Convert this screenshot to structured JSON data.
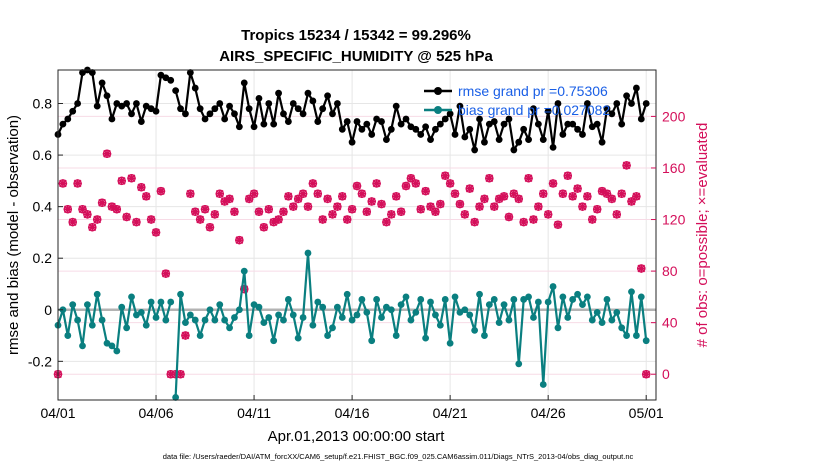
{
  "chart_data": {
    "type": "line",
    "title": "Tropics 15234 / 15342 = 99.296%",
    "subtitle": "AIRS_SPECIFIC_HUMIDITY @ 525 hPa",
    "xlabel": "Apr.01,2013 00:00:00 start",
    "ylabel": "rmse and bias (model - observation)",
    "ylabel_right": "# of obs: o=possible; ×=evaluated",
    "footer": "data file: /Users/raeder/DAI/ATM_forcXX/CAM6_setup/f.e21.FHIST_BGC.f09_025.CAM6assim.011/Diags_NTrS_2013-04/obs_diag_output.nc",
    "xlim": [
      0,
      30.5
    ],
    "ylim": [
      -0.35,
      0.93
    ],
    "ylim_right": [
      -20,
      236
    ],
    "x_ticks": [
      0,
      5,
      10,
      15,
      20,
      25,
      30
    ],
    "x_tick_labels": [
      "04/01",
      "04/06",
      "04/11",
      "04/16",
      "04/21",
      "04/26",
      "05/01"
    ],
    "y_ticks": [
      -0.2,
      0,
      0.2,
      0.4,
      0.6,
      0.8
    ],
    "y_tick_labels": [
      "-0.2",
      "0",
      "0.2",
      "0.4",
      "0.6",
      "0.8"
    ],
    "y_ticks_right": [
      0,
      40,
      80,
      120,
      160,
      200
    ],
    "y_tick_labels_right": [
      "0",
      "40",
      "80",
      "120",
      "160",
      "200"
    ],
    "zero_line": 0,
    "grid": true,
    "series": [
      {
        "name": "rmse grand pr",
        "legend": "rmse grand pr =0.75306",
        "color": "#000000",
        "x": [
          0.0,
          0.25,
          0.5,
          0.75,
          1.0,
          1.25,
          1.5,
          1.75,
          2.0,
          2.25,
          2.5,
          2.75,
          3.0,
          3.25,
          3.5,
          3.75,
          4.0,
          4.25,
          4.5,
          4.75,
          5.0,
          5.25,
          5.5,
          5.75,
          null,
          6.0,
          6.25,
          6.5,
          6.75,
          7.0,
          7.25,
          7.5,
          7.75,
          8.0,
          8.25,
          8.5,
          8.75,
          9.0,
          9.25,
          9.5,
          9.75,
          10.0,
          10.25,
          10.5,
          10.75,
          11.0,
          11.25,
          11.5,
          11.75,
          12.0,
          12.25,
          12.5,
          12.75,
          13.0,
          13.25,
          13.5,
          13.75,
          14.0,
          14.25,
          14.5,
          14.75,
          15.0,
          15.25,
          15.5,
          15.75,
          16.0,
          16.25,
          16.5,
          16.75,
          17.0,
          17.25,
          17.5,
          17.75,
          18.0,
          18.25,
          18.5,
          18.75,
          19.0,
          19.25,
          19.5,
          19.75,
          20.0,
          20.25,
          20.5,
          20.75,
          21.0,
          21.25,
          21.5,
          21.75,
          22.0,
          22.25,
          22.5,
          22.75,
          23.0,
          23.25,
          23.5,
          23.75,
          24.0,
          24.25,
          24.5,
          24.75,
          25.0,
          25.25,
          25.5,
          25.75,
          26.0,
          26.25,
          26.5,
          26.75,
          27.0,
          27.25,
          27.5,
          27.75,
          28.0,
          28.25,
          28.5,
          28.75,
          29.0,
          29.25,
          29.5,
          29.75,
          30.0
        ],
        "values": [
          0.68,
          0.72,
          0.74,
          0.77,
          0.8,
          0.92,
          0.93,
          0.92,
          0.79,
          0.88,
          0.83,
          0.74,
          0.8,
          0.79,
          0.8,
          0.76,
          0.8,
          0.73,
          0.79,
          0.78,
          0.77,
          0.91,
          0.9,
          0.89,
          null,
          0.85,
          0.78,
          0.76,
          0.92,
          0.86,
          0.78,
          0.74,
          0.76,
          0.78,
          0.8,
          0.74,
          0.79,
          0.76,
          0.71,
          0.88,
          0.78,
          0.71,
          0.82,
          0.72,
          0.8,
          0.72,
          0.84,
          0.76,
          0.73,
          0.8,
          0.78,
          0.76,
          0.84,
          0.81,
          0.73,
          0.78,
          0.83,
          0.76,
          0.8,
          0.7,
          0.73,
          0.65,
          0.73,
          0.7,
          0.72,
          0.68,
          0.74,
          0.73,
          0.66,
          0.7,
          0.79,
          0.72,
          0.74,
          0.71,
          0.7,
          0.68,
          0.71,
          0.66,
          0.7,
          0.72,
          0.74,
          0.76,
          0.68,
          0.79,
          0.67,
          0.7,
          0.62,
          0.74,
          0.65,
          0.72,
          0.73,
          0.66,
          0.72,
          0.74,
          0.62,
          0.65,
          0.7,
          0.66,
          0.78,
          0.72,
          0.66,
          0.77,
          0.63,
          0.8,
          0.68,
          0.72,
          0.72,
          0.7,
          0.68,
          0.8,
          0.71,
          0.72,
          0.65,
          0.78,
          0.76,
          0.8,
          0.72,
          0.83,
          0.8,
          0.86,
          0.74,
          0.8
        ]
      },
      {
        "name": "bias grand pr",
        "legend": "bias grand pr =0.027082",
        "color": "#0a7f80",
        "x": [
          0.0,
          0.25,
          0.5,
          0.75,
          1.0,
          1.25,
          1.5,
          1.75,
          2.0,
          2.25,
          2.5,
          2.75,
          3.0,
          3.25,
          3.5,
          3.75,
          4.0,
          4.25,
          4.5,
          4.75,
          5.0,
          5.25,
          5.5,
          5.75,
          null,
          6.0,
          6.25,
          6.5,
          6.75,
          7.0,
          7.25,
          7.5,
          7.75,
          8.0,
          8.25,
          8.5,
          8.75,
          9.0,
          9.25,
          9.5,
          9.75,
          10.0,
          10.25,
          10.5,
          10.75,
          11.0,
          11.25,
          11.5,
          11.75,
          12.0,
          12.25,
          12.5,
          12.75,
          13.0,
          13.25,
          13.5,
          13.75,
          14.0,
          14.25,
          14.5,
          14.75,
          15.0,
          15.25,
          15.5,
          15.75,
          16.0,
          16.25,
          16.5,
          16.75,
          17.0,
          17.25,
          17.5,
          17.75,
          18.0,
          18.25,
          18.5,
          18.75,
          19.0,
          19.25,
          19.5,
          19.75,
          20.0,
          20.25,
          20.5,
          20.75,
          21.0,
          21.25,
          21.5,
          21.75,
          22.0,
          22.25,
          22.5,
          22.75,
          23.0,
          23.25,
          23.5,
          23.75,
          24.0,
          24.25,
          24.5,
          24.75,
          25.0,
          25.25,
          25.5,
          25.75,
          26.0,
          26.25,
          26.5,
          26.75,
          27.0,
          27.25,
          27.5,
          27.75,
          28.0,
          28.25,
          28.5,
          28.75,
          29.0,
          29.25,
          29.5,
          29.75,
          30.0
        ],
        "values": [
          -0.06,
          0.0,
          -0.1,
          0.02,
          -0.04,
          -0.14,
          0.02,
          -0.06,
          0.06,
          -0.04,
          -0.13,
          -0.14,
          -0.16,
          0.01,
          -0.07,
          0.05,
          -0.02,
          -0.01,
          -0.06,
          0.03,
          -0.03,
          0.03,
          -0.04,
          0.03,
          null,
          -0.34,
          0.06,
          -0.05,
          -0.02,
          -0.04,
          -0.1,
          -0.04,
          0.0,
          -0.04,
          0.02,
          -0.04,
          -0.07,
          -0.03,
          0.0,
          0.15,
          -0.1,
          0.02,
          0.01,
          -0.05,
          -0.03,
          -0.12,
          -0.02,
          -0.04,
          0.04,
          -0.02,
          -0.11,
          -0.03,
          0.22,
          -0.06,
          0.03,
          0.01,
          -0.1,
          -0.07,
          0.01,
          -0.03,
          0.06,
          -0.04,
          -0.02,
          0.04,
          -0.01,
          -0.12,
          0.04,
          -0.03,
          0.01,
          0.0,
          -0.1,
          0.02,
          0.05,
          -0.04,
          -0.01,
          0.04,
          -0.11,
          0.03,
          -0.02,
          -0.06,
          0.04,
          -0.13,
          0.05,
          -0.01,
          0.0,
          -0.02,
          -0.08,
          0.06,
          -0.1,
          0.02,
          0.04,
          -0.05,
          0.02,
          -0.04,
          0.04,
          -0.21,
          0.04,
          0.05,
          -0.03,
          0.03,
          -0.29,
          0.03,
          0.09,
          -0.07,
          0.05,
          -0.03,
          0.04,
          0.06,
          0.02,
          0.05,
          -0.04,
          -0.01,
          -0.05,
          0.04,
          -0.04,
          -0.01,
          -0.07,
          -0.1,
          0.07,
          -0.1,
          0.05,
          -0.12
        ]
      }
    ],
    "obs_counts": {
      "color": "#d40f5a",
      "x": [
        0.0,
        0.25,
        0.5,
        0.75,
        1.0,
        1.25,
        1.5,
        1.75,
        2.0,
        2.25,
        2.5,
        2.75,
        3.0,
        3.25,
        3.5,
        3.75,
        4.0,
        4.25,
        4.5,
        4.75,
        5.0,
        5.25,
        5.5,
        5.75,
        6.0,
        6.25,
        6.5,
        6.75,
        7.0,
        7.25,
        7.5,
        7.75,
        8.0,
        8.25,
        8.5,
        8.75,
        9.0,
        9.25,
        9.5,
        9.75,
        10.0,
        10.25,
        10.5,
        10.75,
        11.0,
        11.25,
        11.5,
        11.75,
        12.0,
        12.25,
        12.5,
        12.75,
        13.0,
        13.25,
        13.5,
        13.75,
        14.0,
        14.25,
        14.5,
        14.75,
        15.0,
        15.25,
        15.5,
        15.75,
        16.0,
        16.25,
        16.5,
        16.75,
        17.0,
        17.25,
        17.5,
        17.75,
        18.0,
        18.25,
        18.5,
        18.75,
        19.0,
        19.25,
        19.5,
        19.75,
        20.0,
        20.25,
        20.5,
        20.75,
        21.0,
        21.25,
        21.5,
        21.75,
        22.0,
        22.25,
        22.5,
        22.75,
        23.0,
        23.25,
        23.5,
        23.75,
        24.0,
        24.25,
        24.5,
        24.75,
        25.0,
        25.25,
        25.5,
        25.75,
        26.0,
        26.25,
        26.5,
        26.75,
        27.0,
        27.25,
        27.5,
        27.75,
        28.0,
        28.25,
        28.5,
        28.75,
        29.0,
        29.25,
        29.5,
        29.75,
        30.0
      ],
      "values": [
        0,
        148,
        128,
        118,
        148,
        128,
        124,
        114,
        120,
        133,
        171,
        130,
        128,
        150,
        122,
        152,
        118,
        145,
        138,
        120,
        110,
        142,
        78,
        0,
        0,
        0,
        30,
        140,
        126,
        120,
        128,
        114,
        124,
        140,
        134,
        136,
        126,
        104,
        66,
        136,
        140,
        126,
        114,
        128,
        118,
        120,
        126,
        138,
        130,
        136,
        140,
        130,
        148,
        140,
        120,
        136,
        124,
        130,
        138,
        120,
        128,
        146,
        140,
        126,
        134,
        148,
        132,
        118,
        124,
        138,
        126,
        146,
        152,
        148,
        128,
        142,
        130,
        126,
        132,
        154,
        148,
        140,
        132,
        124,
        144,
        118,
        130,
        136,
        152,
        130,
        136,
        138,
        122,
        140,
        136,
        118,
        152,
        120,
        130,
        140,
        124,
        148,
        116,
        140,
        154,
        138,
        144,
        130,
        138,
        120,
        128,
        142,
        140,
        136,
        124,
        140,
        162,
        134,
        138,
        82,
        0
      ]
    }
  }
}
